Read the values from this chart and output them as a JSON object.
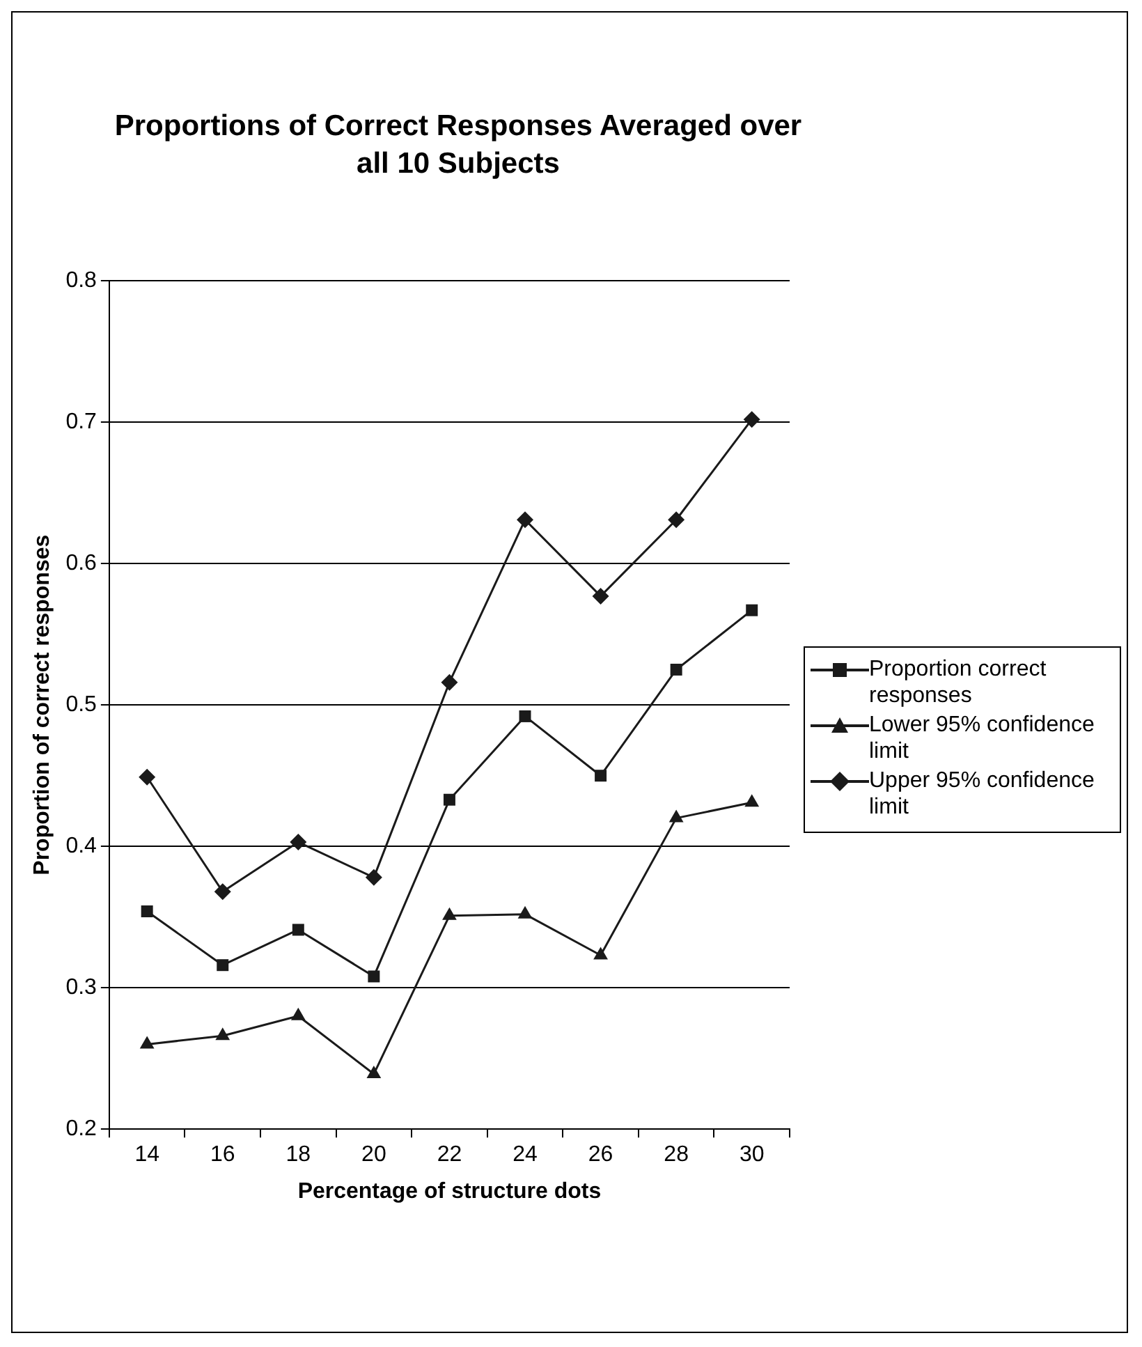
{
  "chart_data": {
    "type": "line",
    "title": "Proportions of Correct Responses Averaged over all 10 Subjects",
    "xlabel": "Percentage of structure dots",
    "ylabel": "Proportion of correct responses",
    "categories": [
      "14",
      "16",
      "18",
      "20",
      "22",
      "24",
      "26",
      "28",
      "30"
    ],
    "series": [
      {
        "name": "Proportion correct responses",
        "color": "#1a1a1a",
        "marker": "square",
        "values": [
          0.354,
          0.316,
          0.341,
          0.308,
          0.433,
          0.492,
          0.45,
          0.525,
          0.567
        ]
      },
      {
        "name": "Lower 95% confidence limit",
        "color": "#1a1a1a",
        "marker": "triangle",
        "values": [
          0.26,
          0.266,
          0.28,
          0.239,
          0.351,
          0.352,
          0.323,
          0.42,
          0.431
        ]
      },
      {
        "name": "Upper 95% confidence limit",
        "color": "#1a1a1a",
        "marker": "diamond",
        "values": [
          0.449,
          0.368,
          0.403,
          0.378,
          0.516,
          0.631,
          0.577,
          0.631,
          0.702
        ]
      }
    ],
    "ylim": [
      0.2,
      0.8
    ],
    "yticks": [
      0.2,
      0.3,
      0.4,
      0.5,
      0.6,
      0.7,
      0.8
    ],
    "grid": "y",
    "legend": "right",
    "line_style": "solid"
  }
}
